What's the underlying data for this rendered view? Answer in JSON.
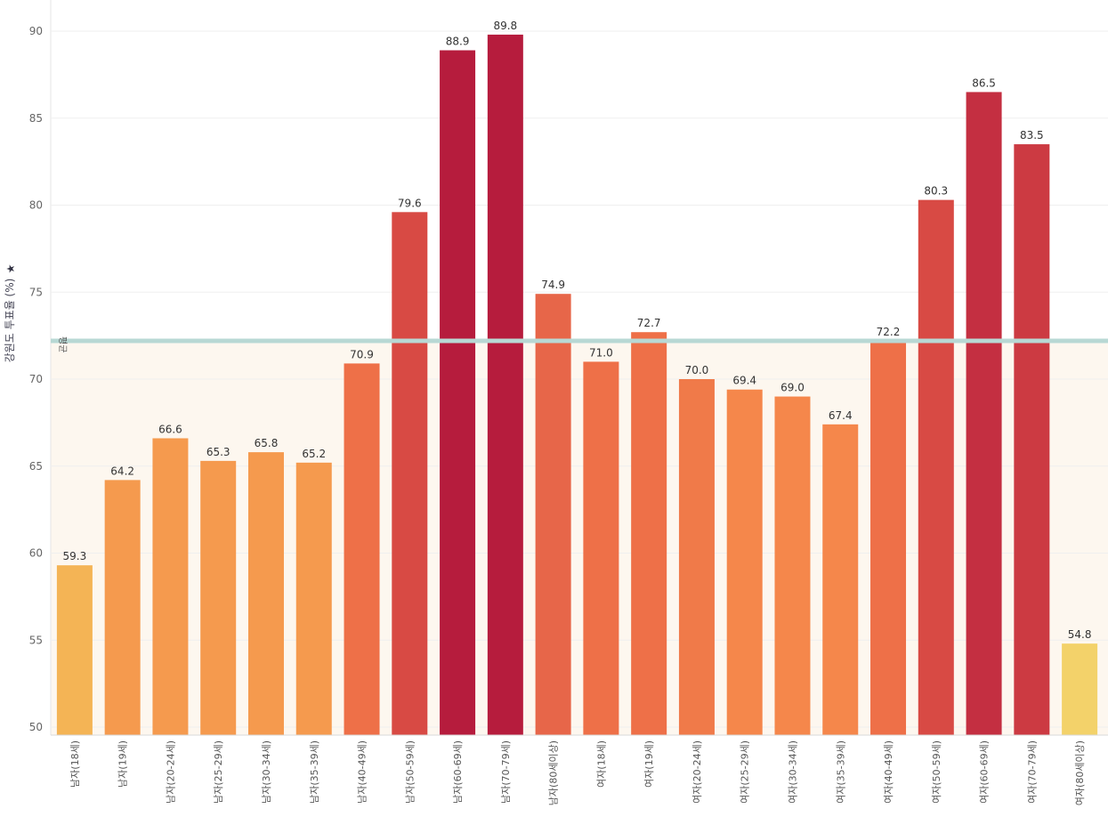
{
  "chart_data": {
    "type": "bar",
    "title": "",
    "xlabel": "",
    "ylabel": "강원도 투표율 (%)",
    "ylabel_icon": "pin-icon",
    "ylim": [
      50,
      92
    ],
    "yticks": [
      50,
      55,
      60,
      65,
      70,
      75,
      80,
      85,
      90
    ],
    "grid": true,
    "categories": [
      "남자(18세)",
      "남자(19세)",
      "남자(20-24세)",
      "남자(25-29세)",
      "남자(30-34세)",
      "남자(35-39세)",
      "남자(40-49세)",
      "남자(50-59세)",
      "남자(60-69세)",
      "남자(70-79세)",
      "남자(80세이상)",
      "여자(18세)",
      "여자(19세)",
      "여자(20-24세)",
      "여자(25-29세)",
      "여자(30-34세)",
      "여자(35-39세)",
      "여자(40-49세)",
      "여자(50-59세)",
      "여자(60-69세)",
      "여자(70-79세)",
      "여자(80세이상)"
    ],
    "values": [
      59.3,
      64.2,
      66.6,
      65.3,
      65.8,
      65.2,
      70.9,
      79.6,
      88.9,
      89.8,
      74.9,
      71.0,
      72.7,
      70.0,
      69.4,
      69.0,
      67.4,
      72.2,
      80.3,
      86.5,
      83.5,
      54.8
    ],
    "value_labels": [
      "59.3",
      "64.2",
      "66.6",
      "65.3",
      "65.8",
      "65.2",
      "70.9",
      "79.6",
      "88.9",
      "89.8",
      "74.9",
      "71.0",
      "72.7",
      "70.0",
      "69.4",
      "69.0",
      "67.4",
      "72.2",
      "80.3",
      "86.5",
      "83.5",
      "54.8"
    ],
    "average": {
      "label": "평균",
      "value": 72.2
    },
    "colors": {
      "low": "#f3d26a",
      "mid_low": "#f59a4e",
      "mid": "#ee7048",
      "high": "#d84a44",
      "max": "#b61c3d",
      "average_line": "#b8d8d4",
      "average_band": "#fdf7ef"
    }
  }
}
